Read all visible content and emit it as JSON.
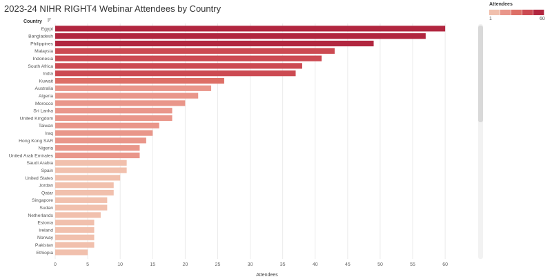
{
  "chart_data": {
    "type": "bar",
    "orientation": "horizontal",
    "title": "2023-24 NIHR RIGHT4 Webinar Attendees by Country",
    "row_header": "Country",
    "xlabel": "Attendees",
    "xlim": [
      0,
      62
    ],
    "xticks": [
      "0",
      "5",
      "10",
      "15",
      "20",
      "25",
      "30",
      "35",
      "40",
      "45",
      "50",
      "55",
      "60"
    ],
    "xtick_values": [
      0,
      5,
      10,
      15,
      20,
      25,
      30,
      35,
      40,
      45,
      50,
      55,
      60
    ],
    "grid": true,
    "categories": [
      "Egypt",
      "Bangladesh",
      "Philippines",
      "Malaysia",
      "Indonesia",
      "South Africa",
      "India",
      "Kuwait",
      "Australia",
      "Algeria",
      "Morocco",
      "Sri Lanka",
      "United Kingdom",
      "Taiwan",
      "Iraq",
      "Hong Kong SAR",
      "Nigeria",
      "United Arab Emirates",
      "Saudi Arabia",
      "Spain",
      "United States",
      "Jordan",
      "Qatar",
      "Singapore",
      "Sudan",
      "Netherlands",
      "Estonia",
      "Ireland",
      "Norway",
      "Pakistan",
      "Ethiopia"
    ],
    "values": [
      60,
      57,
      49,
      43,
      41,
      38,
      37,
      26,
      24,
      22,
      20,
      18,
      18,
      16,
      15,
      14,
      13,
      13,
      11,
      11,
      10,
      9,
      9,
      8,
      8,
      7,
      6,
      6,
      6,
      6,
      5
    ],
    "legend": {
      "title": "Attendees",
      "min_label": "1",
      "max_label": "60",
      "placement": "top-right",
      "steps": [
        "#f1c0ad",
        "#e9968a",
        "#dd6f66",
        "#cc4a52",
        "#b1263f"
      ]
    }
  }
}
